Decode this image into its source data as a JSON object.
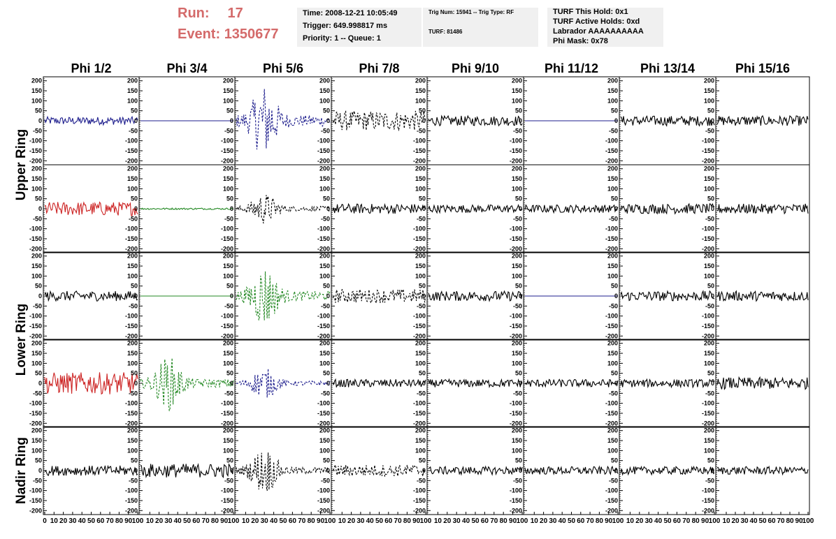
{
  "header": {
    "run_label": "Run:",
    "run_value": "17",
    "event_label": "Event:",
    "event_value": "1350677"
  },
  "info_boxes": {
    "time": "Time: 2008-12-21 10:05:49",
    "trigger": "Trigger: 649.998817 ms",
    "priority": "Priority: 1 -- Queue: 1",
    "trig_num": "Trig Num: 15941 -- Trig Type: RF",
    "turf": "TURF: 81486",
    "turf_hold": "TURF This Hold: 0x1",
    "turf_active": "TURF Active Holds: 0xd",
    "labrador": "Labrador AAAAAAAAAA",
    "phi_mask": "Phi Mask: 0x78"
  },
  "chart_data": {
    "type": "line",
    "columns": [
      "Phi 1/2",
      "Phi 3/4",
      "Phi 5/6",
      "Phi 7/8",
      "Phi 9/10",
      "Phi 11/12",
      "Phi 13/14",
      "Phi 15/16"
    ],
    "ring_labels": [
      {
        "name": "Upper Ring",
        "rows": [
          0,
          1
        ]
      },
      {
        "name": "Lower Ring",
        "rows": [
          2,
          3
        ]
      },
      {
        "name": "Nadir Ring",
        "rows": [
          4,
          4
        ]
      }
    ],
    "ylim": [
      -220,
      220
    ],
    "xlim": [
      0,
      100
    ],
    "yticks": [
      200,
      150,
      100,
      50,
      0,
      -50,
      -100,
      -150,
      -200
    ],
    "xtick_labels": [
      "0 10 20 30 40 50 60 70 80 90 100",
      "10 20 30 40 50 60 70 80 90 100",
      "10 20 30 40 50 60 70 80 90 100",
      "10 20 30 40 50 60 70 80 90 100",
      "10 20 30 40 50 60 70 80 90 100",
      "10 20 30 40 50 60 70 80 90 100",
      "10 20 30 40 50 60 70 80 90 100",
      "10 20 30 40 50 60 70 80 90 100"
    ],
    "colors": {
      "black": "#000000",
      "blue": "#1c1c8c",
      "red": "#cc2222",
      "green": "#228822"
    },
    "panels": [
      [
        {
          "color": "blue",
          "dashed": false,
          "amp": 20,
          "flat": false
        },
        {
          "color": "blue",
          "dashed": false,
          "amp": 0,
          "flat": true
        },
        {
          "color": "blue",
          "dashed": true,
          "amp": 190,
          "flat": false
        },
        {
          "color": "black",
          "dashed": true,
          "amp": 50,
          "flat": false
        },
        {
          "color": "black",
          "dashed": false,
          "amp": 25,
          "flat": false
        },
        {
          "color": "blue",
          "dashed": false,
          "amp": 0,
          "flat": true
        },
        {
          "color": "black",
          "dashed": false,
          "amp": 25,
          "flat": false
        },
        {
          "color": "black",
          "dashed": false,
          "amp": 25,
          "flat": false
        }
      ],
      [
        {
          "color": "red",
          "dashed": false,
          "amp": 35,
          "flat": false
        },
        {
          "color": "green",
          "dashed": false,
          "amp": 4,
          "flat": false
        },
        {
          "color": "black",
          "dashed": true,
          "amp": 80,
          "flat": false
        },
        {
          "color": "black",
          "dashed": false,
          "amp": 25,
          "flat": false
        },
        {
          "color": "black",
          "dashed": false,
          "amp": 20,
          "flat": false
        },
        {
          "color": "black",
          "dashed": false,
          "amp": 20,
          "flat": false
        },
        {
          "color": "black",
          "dashed": false,
          "amp": 25,
          "flat": false
        },
        {
          "color": "black",
          "dashed": false,
          "amp": 25,
          "flat": false
        }
      ],
      [
        {
          "color": "black",
          "dashed": false,
          "amp": 25,
          "flat": false
        },
        {
          "color": "green",
          "dashed": false,
          "amp": 0,
          "flat": true
        },
        {
          "color": "green",
          "dashed": true,
          "amp": 160,
          "flat": false
        },
        {
          "color": "black",
          "dashed": true,
          "amp": 35,
          "flat": false
        },
        {
          "color": "black",
          "dashed": false,
          "amp": 25,
          "flat": false
        },
        {
          "color": "blue",
          "dashed": false,
          "amp": 0,
          "flat": true
        },
        {
          "color": "black",
          "dashed": false,
          "amp": 25,
          "flat": false
        },
        {
          "color": "black",
          "dashed": false,
          "amp": 25,
          "flat": false
        }
      ],
      [
        {
          "color": "red",
          "dashed": false,
          "amp": 55,
          "flat": false
        },
        {
          "color": "green",
          "dashed": true,
          "amp": 140,
          "flat": false
        },
        {
          "color": "blue",
          "dashed": true,
          "amp": 80,
          "flat": false
        },
        {
          "color": "black",
          "dashed": false,
          "amp": 20,
          "flat": false
        },
        {
          "color": "black",
          "dashed": false,
          "amp": 20,
          "flat": false
        },
        {
          "color": "black",
          "dashed": false,
          "amp": 20,
          "flat": false
        },
        {
          "color": "black",
          "dashed": false,
          "amp": 20,
          "flat": false
        },
        {
          "color": "black",
          "dashed": false,
          "amp": 30,
          "flat": false
        }
      ],
      [
        {
          "color": "black",
          "dashed": false,
          "amp": 25,
          "flat": false
        },
        {
          "color": "black",
          "dashed": false,
          "amp": 35,
          "flat": false
        },
        {
          "color": "black",
          "dashed": true,
          "amp": 120,
          "flat": false
        },
        {
          "color": "black",
          "dashed": true,
          "amp": 30,
          "flat": false
        },
        {
          "color": "black",
          "dashed": false,
          "amp": 20,
          "flat": false
        },
        {
          "color": "black",
          "dashed": false,
          "amp": 20,
          "flat": false
        },
        {
          "color": "black",
          "dashed": false,
          "amp": 20,
          "flat": false
        },
        {
          "color": "black",
          "dashed": false,
          "amp": 20,
          "flat": false
        }
      ]
    ]
  }
}
